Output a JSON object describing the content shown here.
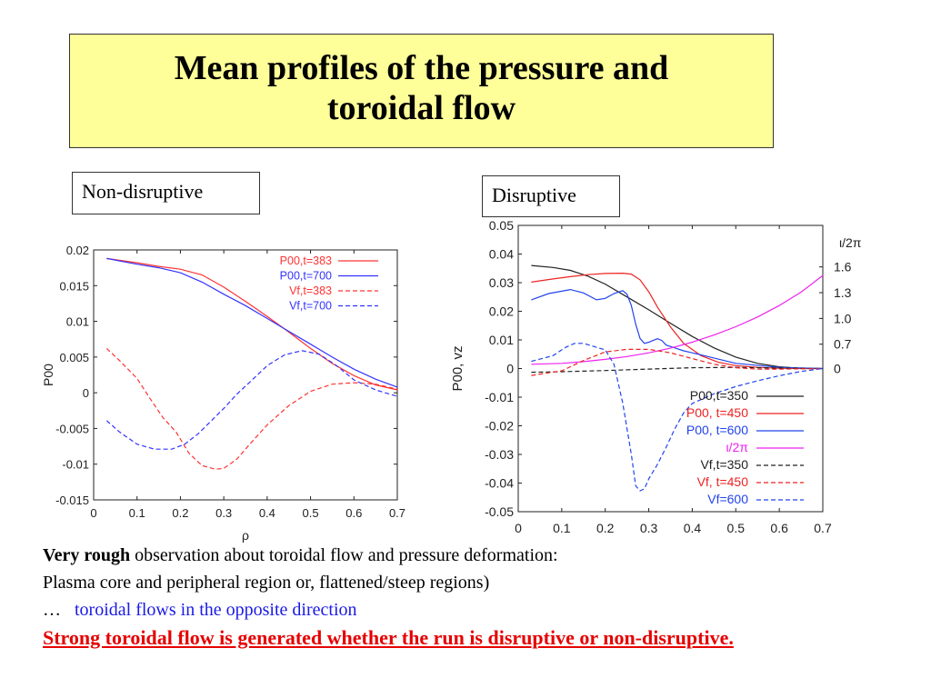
{
  "title": {
    "line1": "Mean profiles of the pressure and",
    "line2": "toroidal flow"
  },
  "labels": {
    "left": "Non-disruptive",
    "right": "Disruptive"
  },
  "notes": {
    "line1_bold": "Very rough",
    "line1_rest": " observation about toroidal flow and pressure deformation:",
    "line2": "Plasma core and peripheral region or, flattened/steep regions)",
    "line3_prefix": " …",
    "line3_blue": "toroidal flows in the opposite direction",
    "line4": "Strong toroidal flow is generated whether the run is disruptive or non-disruptive."
  },
  "chart_data": [
    {
      "type": "line",
      "title": "",
      "xlabel": "ρ",
      "ylabel": "P00",
      "xlim": [
        0,
        0.7
      ],
      "ylim": [
        -0.015,
        0.02
      ],
      "xticks": [
        0,
        0.1,
        0.2,
        0.3,
        0.4,
        0.5,
        0.6,
        0.7
      ],
      "xtick_labels": [
        "0",
        "0.1",
        "0.2",
        "0.3",
        "0.4",
        "0.5",
        "0.6",
        "0.7"
      ],
      "yticks": [
        -0.015,
        -0.01,
        -0.005,
        0,
        0.005,
        0.01,
        0.015,
        0.02
      ],
      "ytick_labels": [
        "-0.015",
        "-0.01",
        "-0.005",
        "0",
        "0.005",
        "0.01",
        "0.015",
        "0.02"
      ],
      "legend": "top-right",
      "series": [
        {
          "name": "P00,t=383",
          "color": "#ff3333",
          "dash": false,
          "x": [
            0.03,
            0.1,
            0.15,
            0.2,
            0.25,
            0.3,
            0.35,
            0.4,
            0.45,
            0.5,
            0.55,
            0.6,
            0.65,
            0.7
          ],
          "y": [
            0.0188,
            0.0182,
            0.0177,
            0.0173,
            0.0165,
            0.0148,
            0.0128,
            0.0107,
            0.0085,
            0.0062,
            0.0041,
            0.0024,
            0.0011,
            0.0004
          ]
        },
        {
          "name": "P00,t=700",
          "color": "#3333ff",
          "dash": false,
          "x": [
            0.03,
            0.1,
            0.15,
            0.2,
            0.25,
            0.3,
            0.35,
            0.4,
            0.45,
            0.5,
            0.55,
            0.6,
            0.65,
            0.7
          ],
          "y": [
            0.0188,
            0.018,
            0.0175,
            0.0168,
            0.0155,
            0.0138,
            0.0122,
            0.0104,
            0.0086,
            0.0068,
            0.005,
            0.0033,
            0.0019,
            0.0008
          ]
        },
        {
          "name": "Vf,t=383",
          "color": "#ff3333",
          "dash": true,
          "x": [
            0.03,
            0.06,
            0.1,
            0.13,
            0.16,
            0.19,
            0.22,
            0.25,
            0.28,
            0.3,
            0.33,
            0.36,
            0.4,
            0.45,
            0.5,
            0.55,
            0.6,
            0.65,
            0.7
          ],
          "y": [
            0.0062,
            0.0045,
            0.002,
            -0.0008,
            -0.0035,
            -0.0055,
            -0.0085,
            -0.0102,
            -0.0107,
            -0.0106,
            -0.0093,
            -0.0072,
            -0.0045,
            -0.0018,
            0.0002,
            0.0012,
            0.0014,
            0.0012,
            0.0005
          ]
        },
        {
          "name": "Vf,t=700",
          "color": "#3333ff",
          "dash": true,
          "x": [
            0.03,
            0.06,
            0.1,
            0.14,
            0.18,
            0.21,
            0.24,
            0.27,
            0.3,
            0.33,
            0.36,
            0.4,
            0.44,
            0.48,
            0.52,
            0.56,
            0.6,
            0.65,
            0.7
          ],
          "y": [
            -0.0039,
            -0.0055,
            -0.0072,
            -0.0079,
            -0.0079,
            -0.0072,
            -0.0058,
            -0.004,
            -0.0022,
            -0.0002,
            0.0015,
            0.0038,
            0.0053,
            0.0059,
            0.0054,
            0.0038,
            0.0018,
            0.0004,
            -0.0005
          ]
        }
      ]
    },
    {
      "type": "line",
      "title": "",
      "xlabel": "",
      "ylabel": "P00, vz",
      "y2label": "ι/2π",
      "xlim": [
        0,
        0.7
      ],
      "ylim": [
        -0.05,
        0.05
      ],
      "xticks": [
        0,
        0.1,
        0.2,
        0.3,
        0.4,
        0.5,
        0.6,
        0.7
      ],
      "xtick_labels": [
        "0",
        "0.1",
        "0.2",
        "0.3",
        "0.4",
        "0.5",
        "0.6",
        "0.7"
      ],
      "yticks": [
        -0.05,
        -0.04,
        -0.03,
        -0.02,
        -0.01,
        0,
        0.01,
        0.02,
        0.03,
        0.04,
        0.05
      ],
      "ytick_labels": [
        "-0.05",
        "-0.04",
        "-0.03",
        "-0.02",
        "-0.01",
        "0",
        "0.01",
        "0.02",
        "0.03",
        "0.04",
        "0.05"
      ],
      "y2ticks": [
        0,
        0.7,
        1.0,
        1.3,
        1.6
      ],
      "y2tick_labels": [
        "0",
        "0.7",
        "1.0",
        "1.3",
        "1.6"
      ],
      "y2_positions_on_y": [
        0,
        0.0085,
        0.0175,
        0.0265,
        0.0355
      ],
      "legend": "bottom-right",
      "series": [
        {
          "name": "P00,t=350",
          "color": "#222222",
          "dash": false,
          "x": [
            0.03,
            0.08,
            0.12,
            0.16,
            0.2,
            0.25,
            0.3,
            0.35,
            0.4,
            0.45,
            0.5,
            0.55,
            0.6,
            0.65,
            0.7
          ],
          "y": [
            0.036,
            0.0353,
            0.0343,
            0.0323,
            0.0295,
            0.025,
            0.0205,
            0.0158,
            0.0112,
            0.0072,
            0.004,
            0.0018,
            0.0006,
            0.0001,
            0
          ]
        },
        {
          "name": "P00, t=450",
          "color": "#ee2222",
          "dash": false,
          "x": [
            0.03,
            0.08,
            0.12,
            0.16,
            0.2,
            0.24,
            0.26,
            0.28,
            0.3,
            0.32,
            0.35,
            0.38,
            0.42,
            0.46,
            0.5,
            0.55,
            0.6,
            0.65,
            0.7
          ],
          "y": [
            0.0302,
            0.0313,
            0.0321,
            0.0328,
            0.0332,
            0.0333,
            0.033,
            0.031,
            0.0268,
            0.0215,
            0.0145,
            0.0088,
            0.0045,
            0.0022,
            0.001,
            0.0004,
            0.0001,
            0,
            0
          ]
        },
        {
          "name": "P00, t=600",
          "color": "#2244ee",
          "dash": false,
          "x": [
            0.03,
            0.07,
            0.12,
            0.15,
            0.18,
            0.2,
            0.22,
            0.24,
            0.25,
            0.26,
            0.27,
            0.28,
            0.29,
            0.3,
            0.31,
            0.32,
            0.33,
            0.34,
            0.36,
            0.38,
            0.42,
            0.5,
            0.6,
            0.7
          ],
          "y": [
            0.024,
            0.0262,
            0.0276,
            0.0264,
            0.024,
            0.0245,
            0.0262,
            0.0272,
            0.026,
            0.022,
            0.0155,
            0.0105,
            0.0088,
            0.0092,
            0.0098,
            0.0104,
            0.0098,
            0.0082,
            0.0072,
            0.0062,
            0.0048,
            0.0018,
            0.0004,
            0
          ]
        },
        {
          "name": "ι/2π",
          "color": "#ee22ee",
          "dash": false,
          "x": [
            0.03,
            0.1,
            0.15,
            0.2,
            0.25,
            0.3,
            0.35,
            0.4,
            0.45,
            0.5,
            0.55,
            0.6,
            0.65,
            0.7
          ],
          "y": [
            0.0015,
            0.0018,
            0.0024,
            0.0032,
            0.0042,
            0.0055,
            0.0071,
            0.0092,
            0.0117,
            0.0146,
            0.018,
            0.022,
            0.0267,
            0.0325
          ]
        },
        {
          "name": "Vf,t=350",
          "color": "#222222",
          "dash": true,
          "x": [
            0.03,
            0.1,
            0.2,
            0.3,
            0.4,
            0.5,
            0.6,
            0.7
          ],
          "y": [
            -0.0013,
            -0.0011,
            -0.0007,
            -0.0002,
            0.0003,
            0.0004,
            0.0002,
            0
          ]
        },
        {
          "name": "Vf, t=450",
          "color": "#ee2222",
          "dash": true,
          "x": [
            0.03,
            0.1,
            0.15,
            0.2,
            0.25,
            0.3,
            0.35,
            0.4,
            0.45,
            0.5,
            0.55,
            0.6,
            0.7
          ],
          "y": [
            -0.0024,
            -0.0008,
            0.0028,
            0.0058,
            0.0067,
            0.0067,
            0.0055,
            0.0035,
            0.0015,
            0.0003,
            -0.0002,
            -0.0002,
            0
          ]
        },
        {
          "name": "Vf=600",
          "color": "#2244ee",
          "dash": true,
          "x": [
            0.03,
            0.08,
            0.11,
            0.13,
            0.15,
            0.2,
            0.22,
            0.24,
            0.26,
            0.27,
            0.28,
            0.29,
            0.3,
            0.32,
            0.34,
            0.36,
            0.38,
            0.4,
            0.45,
            0.5,
            0.55,
            0.6,
            0.65,
            0.7
          ],
          "y": [
            0.0025,
            0.0045,
            0.0075,
            0.0088,
            0.0088,
            0.0065,
            0.0015,
            -0.012,
            -0.03,
            -0.041,
            -0.0427,
            -0.042,
            -0.0385,
            -0.0335,
            -0.0275,
            -0.021,
            -0.0155,
            -0.0122,
            -0.0088,
            -0.0063,
            -0.0043,
            -0.0025,
            -0.001,
            0
          ]
        }
      ]
    }
  ]
}
